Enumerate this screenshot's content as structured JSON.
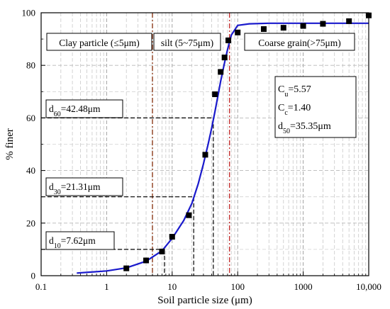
{
  "chart_data": {
    "type": "scatter",
    "xlabel": "Soil particle size (μm)",
    "ylabel": "% finer",
    "x_scale": "log",
    "xlim": [
      0.1,
      10000
    ],
    "ylim": [
      0,
      100
    ],
    "x_ticks": [
      0.1,
      1,
      10,
      100,
      1000,
      10000
    ],
    "x_tick_labels": [
      "0.1",
      "1",
      "10",
      "100",
      "1000",
      "10,000"
    ],
    "y_ticks": [
      0,
      20,
      40,
      60,
      80,
      100
    ],
    "y_tick_labels": [
      "0",
      "20",
      "40",
      "60",
      "80",
      "100"
    ],
    "grid": "dashed",
    "series": [
      {
        "type": "scatter",
        "color": "#000000",
        "x": [
          2,
          4,
          7,
          10,
          18,
          32,
          45,
          55,
          63,
          72,
          100,
          250,
          500,
          1000,
          2000,
          5000,
          10000
        ],
        "y": [
          2.8,
          5.8,
          9.2,
          14.8,
          23,
          46,
          69,
          77.5,
          83,
          89.5,
          92.5,
          93.8,
          94.3,
          95,
          95.8,
          96.8,
          99
        ]
      },
      {
        "type": "line",
        "color": "#1a1acc",
        "x": [
          0.35,
          1,
          2,
          4,
          7,
          10,
          15,
          20,
          25,
          30,
          35.35,
          40,
          45,
          50,
          55,
          60,
          65,
          70,
          80,
          100,
          150,
          300,
          1000,
          10000
        ],
        "y": [
          1,
          1.8,
          3,
          5.5,
          9.5,
          14.2,
          21,
          27.5,
          35,
          42.5,
          50,
          56,
          62.5,
          68.5,
          74,
          78.5,
          82.5,
          86,
          91.5,
          95.2,
          95.8,
          96,
          96,
          96
        ]
      }
    ],
    "region_boundaries": [
      {
        "x": 5,
        "color": "#8b3a1a",
        "label": "Clay particle (≤5μm)"
      },
      {
        "x": 75,
        "color": "#c43030",
        "label": "silt (5~75μm)"
      }
    ],
    "region_labels": [
      {
        "id": "clay",
        "text": "Clay particle (≤5μm)"
      },
      {
        "id": "silt",
        "text": "silt (5~75μm)"
      },
      {
        "id": "coarse",
        "text": "Coarse grain(>75μm)"
      }
    ],
    "percentile_lines": [
      {
        "y": 60,
        "x": 42.48,
        "label": "d",
        "sub": "60",
        "rest": "=42.48μm"
      },
      {
        "y": 30,
        "x": 21.31,
        "label": "d",
        "sub": "30",
        "rest": "=21.31μm"
      },
      {
        "y": 10,
        "x": 7.62,
        "label": "d",
        "sub": "10",
        "rest": "=7.62μm"
      }
    ],
    "stats": [
      {
        "label": "C",
        "sub": "u",
        "rest": "=5.57"
      },
      {
        "label": "C",
        "sub": "c",
        "rest": "=1.40"
      },
      {
        "label": "d",
        "sub": "50",
        "rest": "=35.35μm"
      }
    ]
  }
}
